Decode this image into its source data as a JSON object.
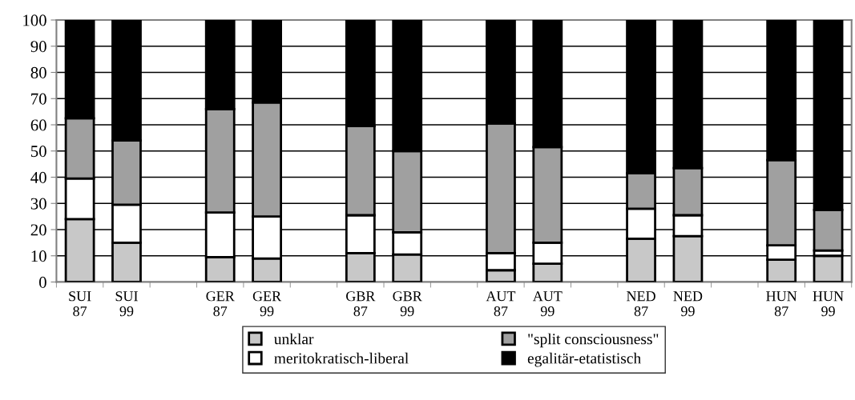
{
  "chart_data": {
    "type": "bar",
    "stacked": true,
    "categories": [
      "SUI\n87",
      "SUI\n99",
      null,
      "GER\n87",
      "GER\n99",
      null,
      "GBR\n87",
      "GBR\n99",
      null,
      "AUT\n87",
      "AUT\n99",
      null,
      "NED\n87",
      "NED\n99",
      null,
      "HUN\n87",
      "HUN\n99"
    ],
    "series": [
      {
        "name": "unklar",
        "color": "#c8c8c8",
        "values": [
          24,
          15,
          null,
          9.5,
          9,
          null,
          11,
          10.5,
          null,
          4.5,
          7,
          null,
          16.5,
          17.5,
          null,
          8.5,
          10
        ]
      },
      {
        "name": "meritokratisch-liberal",
        "color": "#ffffff",
        "values": [
          15.5,
          14.5,
          null,
          17,
          16,
          null,
          14.5,
          8.5,
          null,
          6.5,
          8,
          null,
          11.5,
          8,
          null,
          5.5,
          2
        ]
      },
      {
        "name": "\"split consciousness\"",
        "color": "#a0a0a0",
        "values": [
          23,
          24.5,
          null,
          39.5,
          43.5,
          null,
          34,
          31,
          null,
          49.5,
          36.5,
          null,
          13.5,
          18,
          null,
          32.5,
          15.5
        ]
      },
      {
        "name": "egalitär-etatistisch",
        "color": "#000000",
        "values": [
          37.5,
          46,
          null,
          34,
          31.5,
          null,
          40.5,
          50,
          null,
          39.5,
          48.5,
          null,
          58.5,
          56.5,
          null,
          53.5,
          72.5
        ]
      }
    ],
    "ylim": [
      0,
      100
    ],
    "yticks": [
      0,
      10,
      20,
      30,
      40,
      50,
      60,
      70,
      80,
      90,
      100
    ],
    "grid": "y",
    "legend": "bottom"
  }
}
